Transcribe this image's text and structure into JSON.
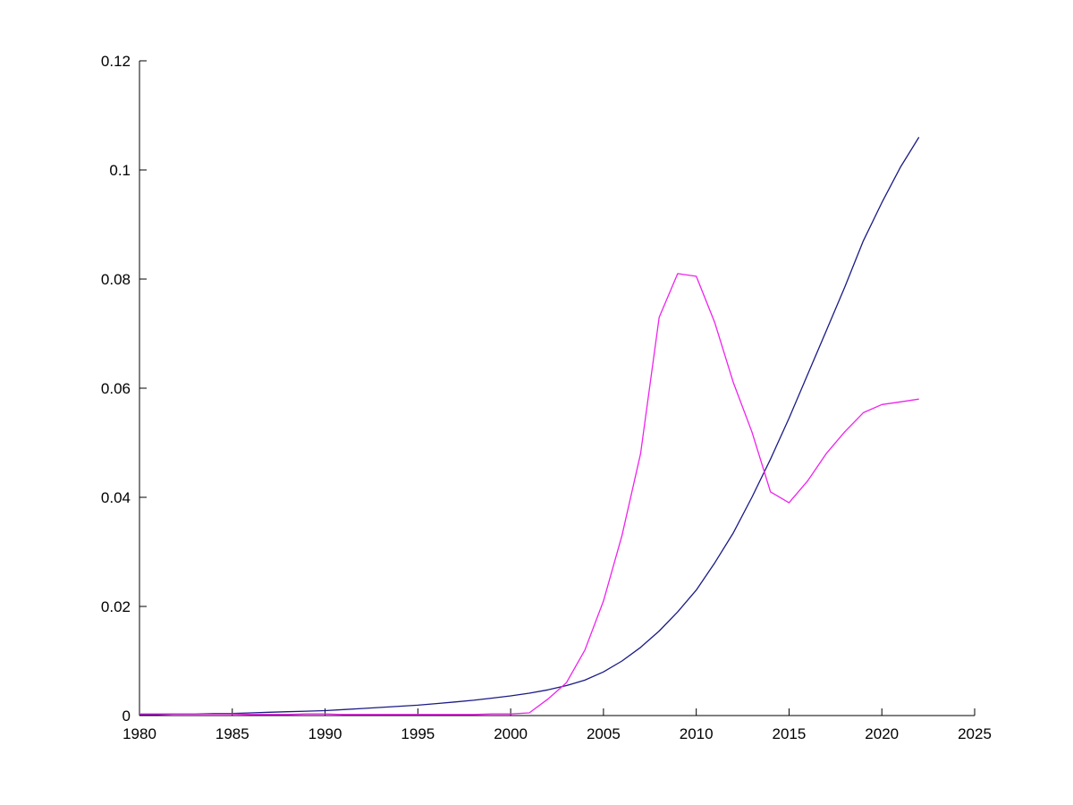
{
  "chart_data": {
    "type": "line",
    "title": "",
    "xlabel": "",
    "ylabel": "",
    "grid": false,
    "legend": null,
    "xlim": [
      1980,
      2025
    ],
    "ylim": [
      0,
      0.12
    ],
    "xticks": [
      1980,
      1985,
      1990,
      1995,
      2000,
      2005,
      2010,
      2015,
      2020,
      2025
    ],
    "xtick_labels": [
      "1980",
      "1985",
      "1990",
      "1995",
      "2000",
      "2005",
      "2010",
      "2015",
      "2020",
      "2025"
    ],
    "yticks": [
      0,
      0.02,
      0.04,
      0.06,
      0.08,
      0.1,
      0.12
    ],
    "ytick_labels": [
      "0",
      "0.02",
      "0.04",
      "0.06",
      "0.08",
      "0.1",
      "0.12"
    ],
    "x": [
      1980,
      1981,
      1982,
      1983,
      1984,
      1985,
      1986,
      1987,
      1988,
      1989,
      1990,
      1991,
      1992,
      1993,
      1994,
      1995,
      1996,
      1997,
      1998,
      1999,
      2000,
      2001,
      2002,
      2003,
      2004,
      2005,
      2006,
      2007,
      2008,
      2009,
      2010,
      2011,
      2012,
      2013,
      2014,
      2015,
      2016,
      2017,
      2018,
      2019,
      2020,
      2021,
      2022
    ],
    "series": [
      {
        "name": "dark-blue",
        "color": "#1a1a85",
        "values": [
          0.0002,
          0.0002,
          0.0003,
          0.0003,
          0.0004,
          0.0004,
          0.0005,
          0.0006,
          0.0007,
          0.0008,
          0.0009,
          0.0011,
          0.0013,
          0.0015,
          0.0017,
          0.0019,
          0.0022,
          0.0025,
          0.0028,
          0.0032,
          0.0036,
          0.0041,
          0.0047,
          0.0055,
          0.0065,
          0.008,
          0.01,
          0.0125,
          0.0155,
          0.019,
          0.023,
          0.028,
          0.0335,
          0.04,
          0.047,
          0.0545,
          0.0625,
          0.0705,
          0.0785,
          0.087,
          0.094,
          0.1005,
          0.106
        ]
      },
      {
        "name": "magenta",
        "color": "#ee22ee",
        "values": [
          0.0003,
          0.0003,
          0.0003,
          0.0003,
          0.0003,
          0.0003,
          0.0002,
          0.0002,
          0.0002,
          0.0003,
          0.0003,
          0.0002,
          0.0002,
          0.0002,
          0.0002,
          0.0002,
          0.0002,
          0.0002,
          0.0002,
          0.0003,
          0.0003,
          0.0005,
          0.003,
          0.006,
          0.012,
          0.021,
          0.033,
          0.048,
          0.073,
          0.081,
          0.0805,
          0.072,
          0.061,
          0.052,
          0.041,
          0.039,
          0.043,
          0.048,
          0.052,
          0.0555,
          0.057,
          0.0575,
          0.058
        ]
      }
    ]
  },
  "axes": {
    "tick_length": 8,
    "axis_color": "#000000"
  }
}
